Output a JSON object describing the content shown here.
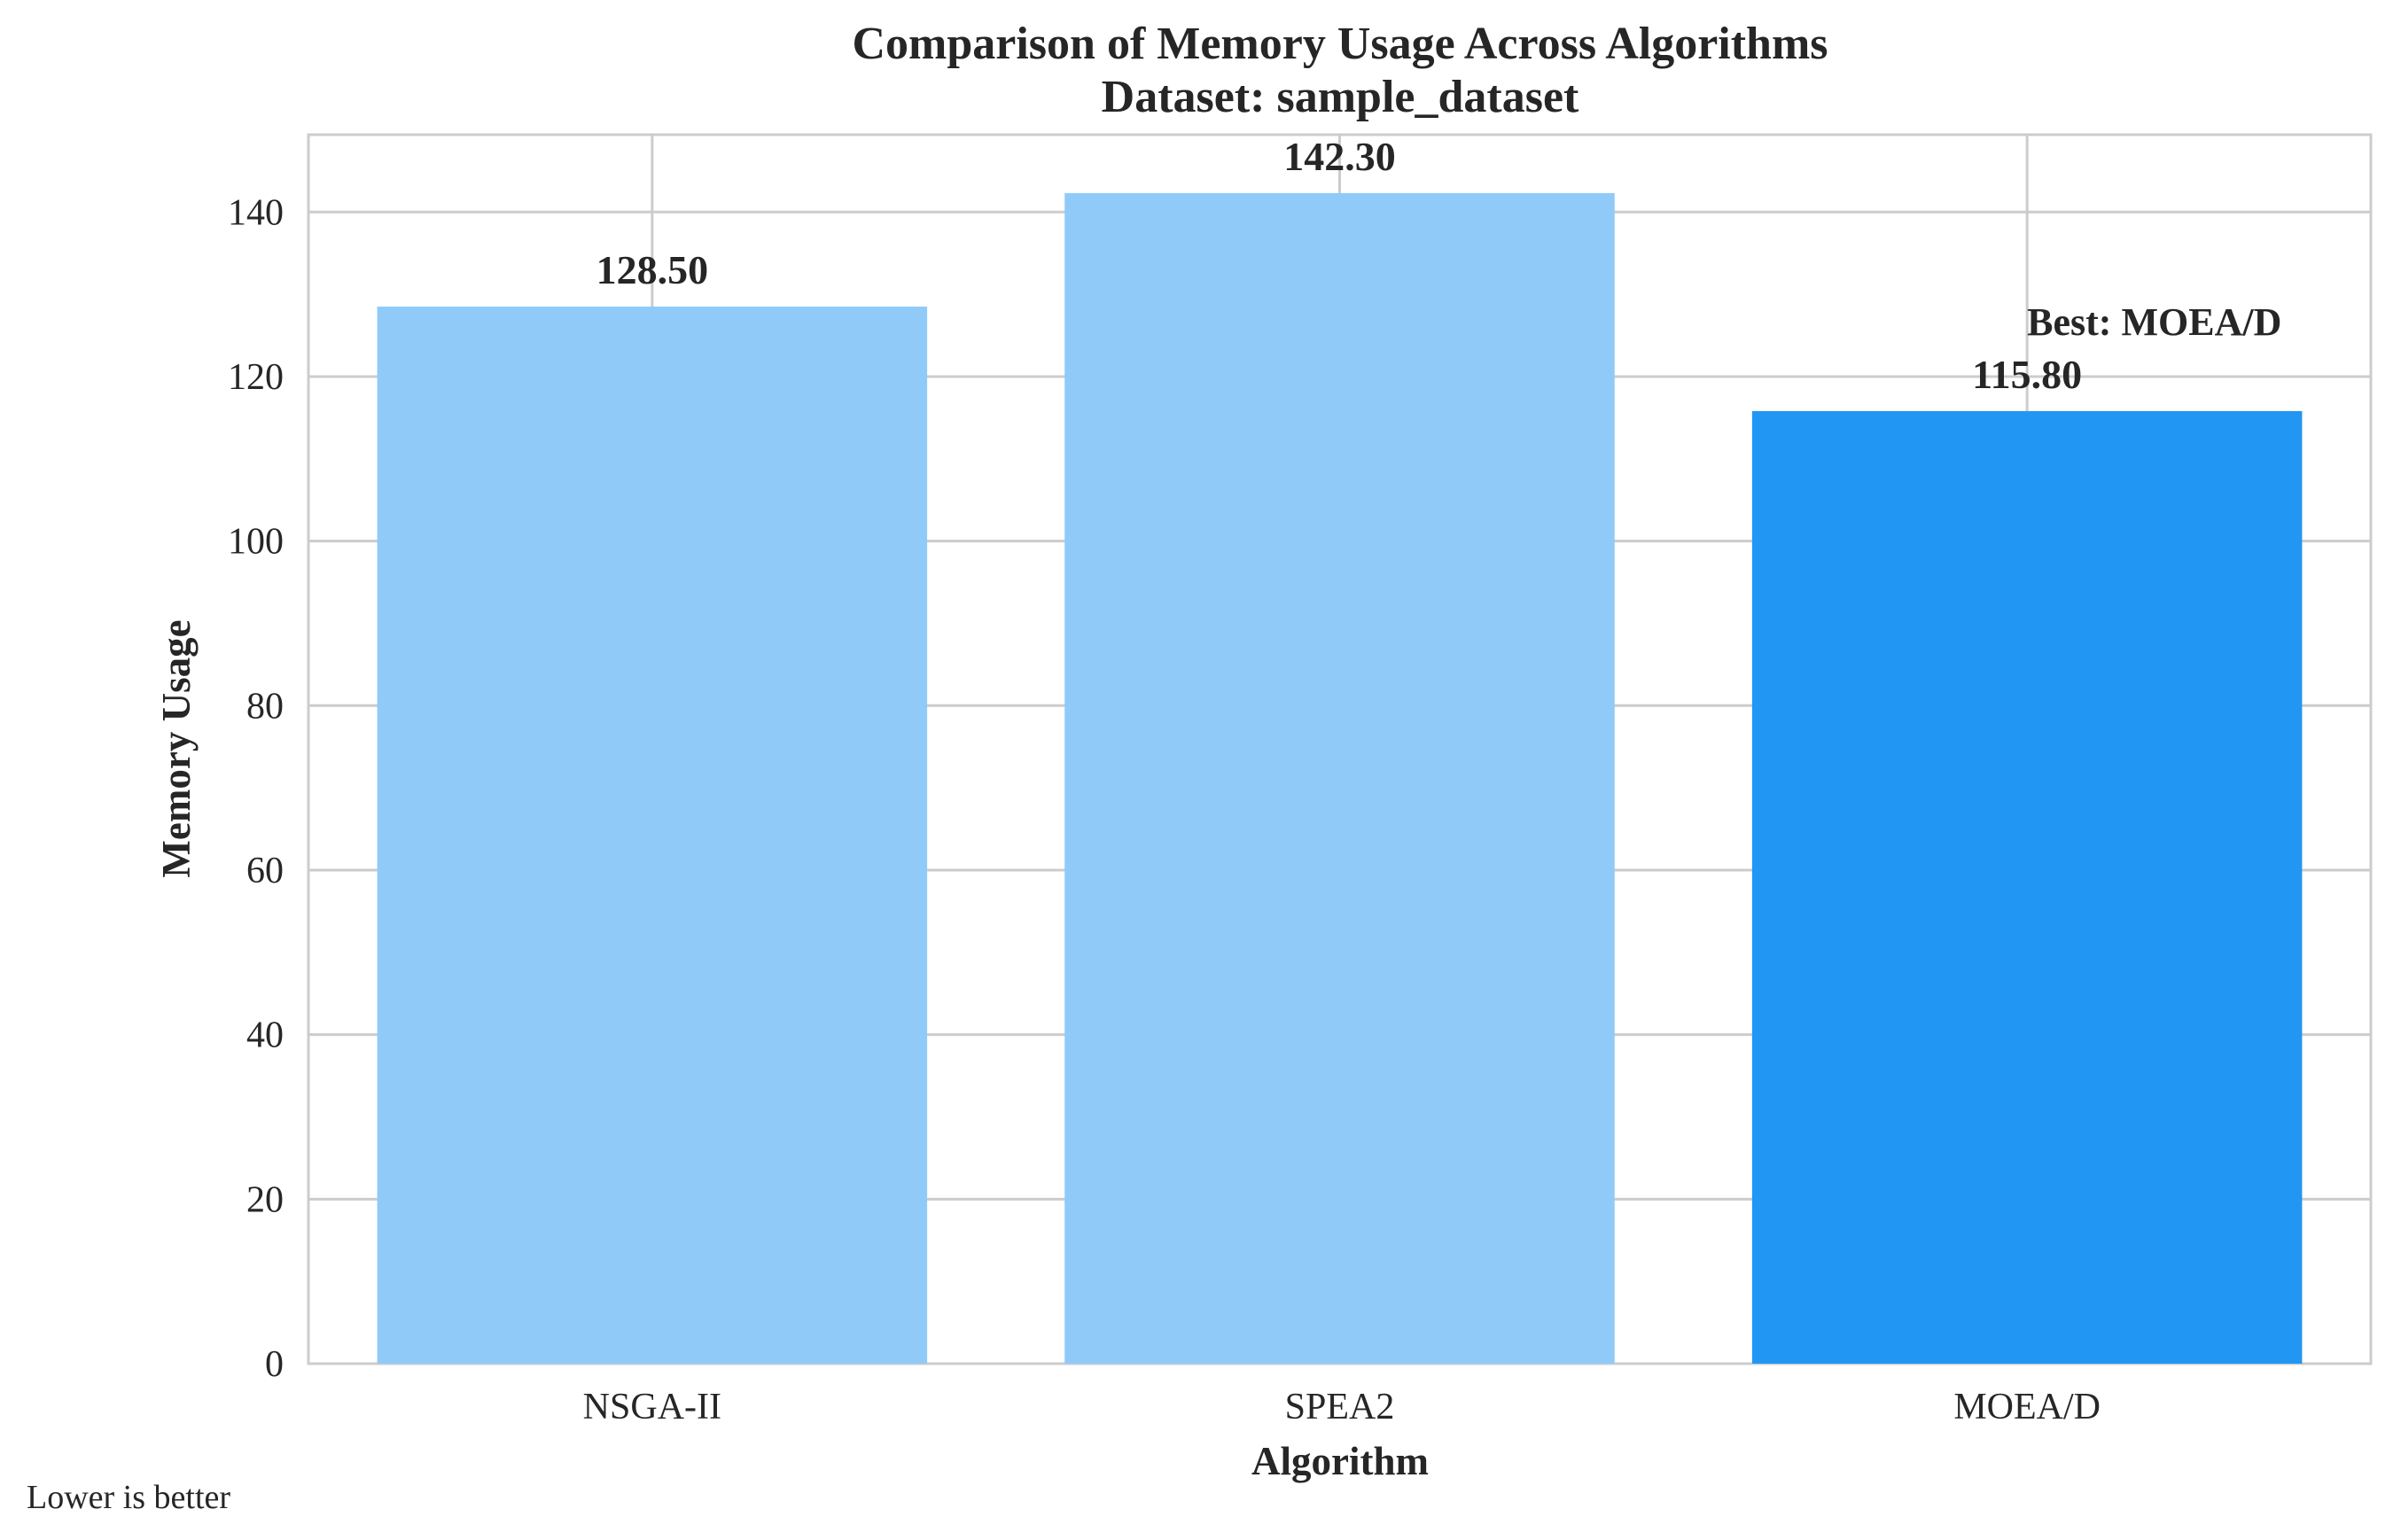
{
  "chart_data": {
    "type": "bar",
    "title": "Comparison of Memory Usage Across Algorithms",
    "subtitle": "Dataset: sample_dataset",
    "xlabel": "Algorithm",
    "ylabel": "Memory Usage",
    "categories": [
      "NSGA-II",
      "SPEA2",
      "MOEA/D"
    ],
    "values": [
      128.5,
      142.3,
      115.8
    ],
    "value_labels": [
      "128.50",
      "142.30",
      "115.80"
    ],
    "bar_colors": [
      "#90caf9",
      "#90caf9",
      "#2196f3"
    ],
    "ylim": [
      0,
      149.4
    ],
    "yticks": [
      0,
      20,
      40,
      60,
      80,
      100,
      120,
      140
    ],
    "grid": true,
    "annotation": {
      "text": "Best: MOEA/D",
      "category": "MOEA/D",
      "value": 115.8
    },
    "footnote": "Lower is better"
  }
}
